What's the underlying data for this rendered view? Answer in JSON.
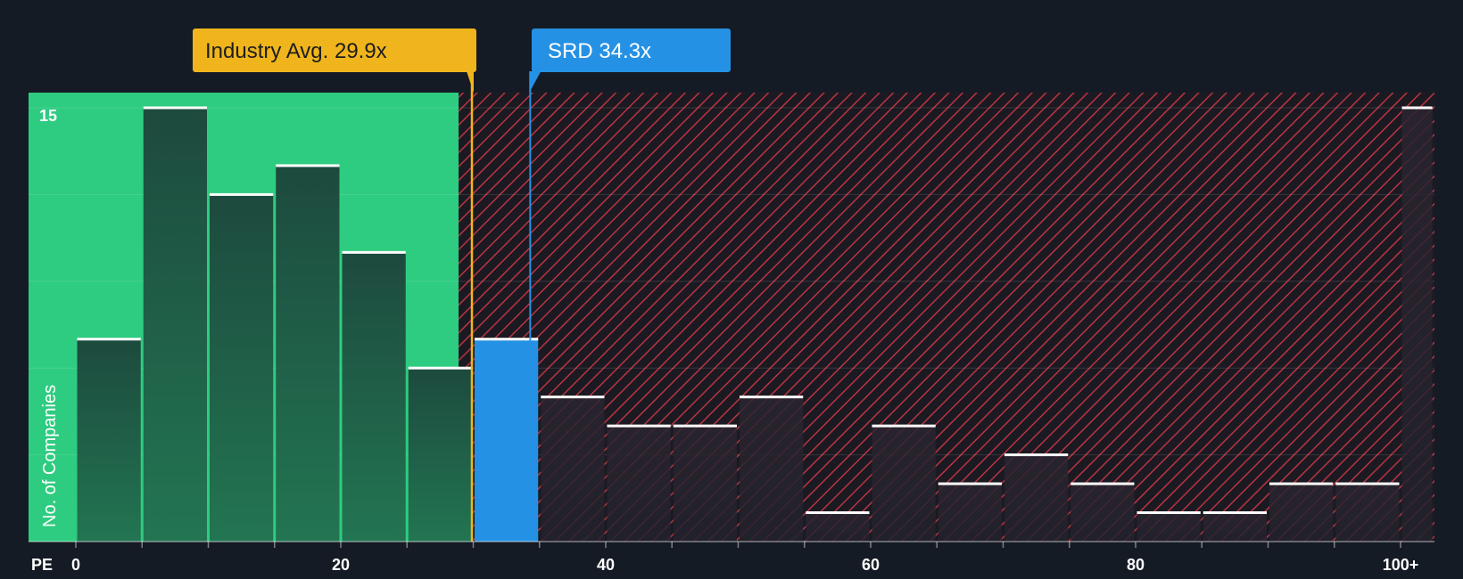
{
  "chart_data": {
    "type": "bar",
    "xlabel": "PE",
    "ylabel": "No. of Companies",
    "x_ticks": [
      "0",
      "20",
      "40",
      "60",
      "80",
      "100+"
    ],
    "y_ticks": [
      "15"
    ],
    "ylim": [
      0,
      15.5
    ],
    "bin_width": 5,
    "bins": [
      {
        "start": 0,
        "end": 5,
        "value": 7
      },
      {
        "start": 5,
        "end": 10,
        "value": 15
      },
      {
        "start": 10,
        "end": 15,
        "value": 12
      },
      {
        "start": 15,
        "end": 20,
        "value": 13
      },
      {
        "start": 20,
        "end": 25,
        "value": 10
      },
      {
        "start": 25,
        "end": 30,
        "value": 6
      },
      {
        "start": 30,
        "end": 35,
        "value": 7
      },
      {
        "start": 35,
        "end": 40,
        "value": 5
      },
      {
        "start": 40,
        "end": 45,
        "value": 4
      },
      {
        "start": 45,
        "end": 50,
        "value": 4
      },
      {
        "start": 50,
        "end": 55,
        "value": 5
      },
      {
        "start": 55,
        "end": 60,
        "value": 1
      },
      {
        "start": 60,
        "end": 65,
        "value": 4
      },
      {
        "start": 65,
        "end": 70,
        "value": 2
      },
      {
        "start": 70,
        "end": 75,
        "value": 3
      },
      {
        "start": 75,
        "end": 80,
        "value": 2
      },
      {
        "start": 80,
        "end": 85,
        "value": 1
      },
      {
        "start": 85,
        "end": 90,
        "value": 1
      },
      {
        "start": 90,
        "end": 95,
        "value": 2
      },
      {
        "start": 95,
        "end": 100,
        "value": 2
      },
      {
        "start": 100,
        "end": 102.5,
        "value": 15
      }
    ],
    "industry_avg": {
      "label": "Industry Avg. 29.9x",
      "value": 29.9
    },
    "company": {
      "label": "SRD 34.3x",
      "value": 34.3
    },
    "grid": true,
    "colors": {
      "background": "#151b24",
      "undervalued_zone": "#2ecc80",
      "overvalued_zone": "#3a1c24",
      "hatch_line": "#c53a46",
      "bar_fill": "#1c4a3c",
      "bar_cap": "#ffffff",
      "company_bar": "#2591e4",
      "industry_callout": "#f0b51c",
      "industry_text": "#1d1d1d",
      "company_callout": "#2591e4",
      "company_text": "#ffffff"
    }
  }
}
